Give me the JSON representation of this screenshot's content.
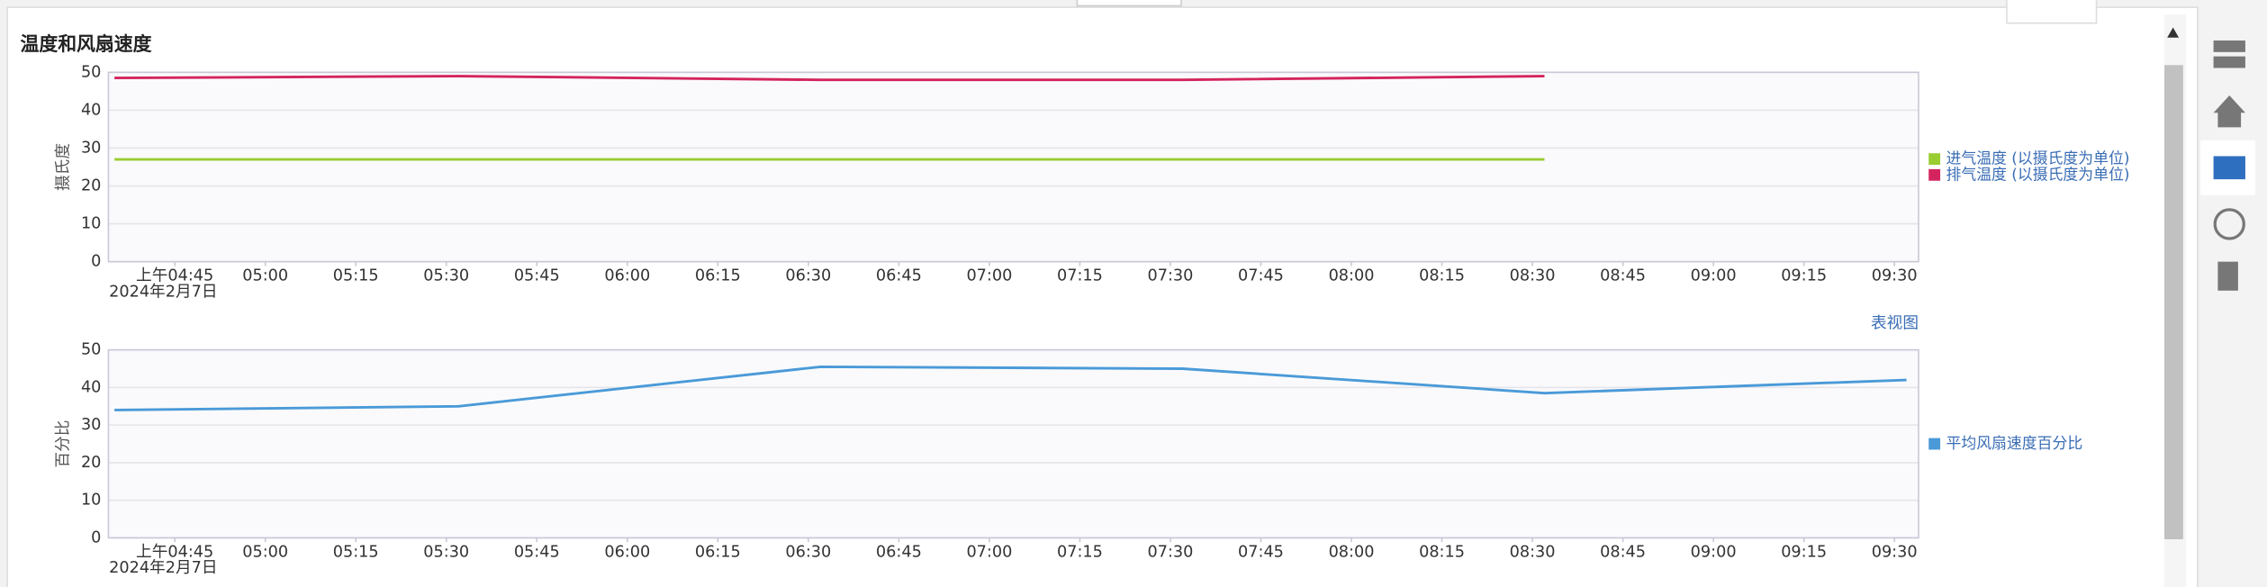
{
  "panel_title": "温度和风扇速度",
  "table_view_link": "表视图",
  "chart_data": [
    {
      "type": "line",
      "y_label": "摄氏度",
      "x_sublabel": "2024年2月7日",
      "x": [
        "04:35",
        "05:32",
        "06:32",
        "07:32",
        "08:32"
      ],
      "series": [
        {
          "name": "进气温度 (以摄氏度为单位)",
          "color": "#9acd32",
          "values": [
            27,
            27,
            27,
            27,
            27
          ]
        },
        {
          "name": "排气温度 (以摄氏度为单位)",
          "color": "#d4245e",
          "values": [
            48.5,
            49,
            48,
            48,
            49
          ]
        }
      ],
      "xlim": [
        "04:34",
        "09:34"
      ],
      "xticks": [
        {
          "value": "04:45",
          "label": "上午04:45"
        },
        "05:00",
        "05:15",
        "05:30",
        "05:45",
        "06:00",
        "06:15",
        "06:30",
        "06:45",
        "07:00",
        "07:15",
        "07:30",
        "07:45",
        "08:00",
        "08:15",
        "08:30",
        "08:45",
        "09:00",
        "09:15",
        "09:30"
      ],
      "ylim": [
        0,
        50
      ],
      "yticks": [
        0,
        10,
        20,
        30,
        40,
        50
      ],
      "grid": true,
      "legend": "right"
    },
    {
      "type": "line",
      "y_label": "百分比",
      "x_sublabel": "2024年2月7日",
      "x": [
        "04:35",
        "05:32",
        "06:32",
        "07:32",
        "08:32",
        "09:32"
      ],
      "series": [
        {
          "name": "平均风扇速度百分比",
          "color": "#4a9ad8",
          "values": [
            34,
            35,
            45.5,
            45,
            38.5,
            42
          ]
        }
      ],
      "xlim": [
        "04:34",
        "09:34"
      ],
      "xticks": [
        {
          "value": "04:45",
          "label": "上午04:45"
        },
        "05:00",
        "05:15",
        "05:30",
        "05:45",
        "06:00",
        "06:15",
        "06:30",
        "06:45",
        "07:00",
        "07:15",
        "07:30",
        "07:45",
        "08:00",
        "08:15",
        "08:30",
        "08:45",
        "09:00",
        "09:15",
        "09:30"
      ],
      "ylim": [
        0,
        50
      ],
      "yticks": [
        0,
        10,
        20,
        30,
        40,
        50
      ],
      "grid": true,
      "legend": "right"
    }
  ]
}
